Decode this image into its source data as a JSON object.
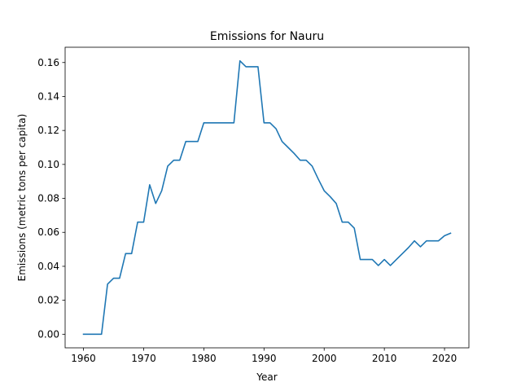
{
  "chart_data": {
    "type": "line",
    "title": "Emissions for Nauru",
    "xlabel": "Year",
    "ylabel": "Emissions (metric tons per capita)",
    "xlim": [
      1956.95,
      2024.05
    ],
    "ylim": [
      -0.008,
      0.169
    ],
    "x_ticks": [
      1960,
      1970,
      1980,
      1990,
      2000,
      2010,
      2020
    ],
    "y_ticks": [
      0.0,
      0.02,
      0.04,
      0.06,
      0.08,
      0.1,
      0.12,
      0.14,
      0.16
    ],
    "y_tick_labels": [
      "0.00",
      "0.02",
      "0.04",
      "0.06",
      "0.08",
      "0.10",
      "0.12",
      "0.14",
      "0.16"
    ],
    "grid": false,
    "series_color": "#1f77b4",
    "x": [
      1960,
      1961,
      1962,
      1963,
      1964,
      1965,
      1966,
      1967,
      1968,
      1969,
      1970,
      1971,
      1972,
      1973,
      1974,
      1975,
      1976,
      1977,
      1978,
      1979,
      1980,
      1981,
      1982,
      1983,
      1984,
      1985,
      1986,
      1987,
      1988,
      1989,
      1990,
      1991,
      1992,
      1993,
      1994,
      1995,
      1996,
      1997,
      1998,
      1999,
      2000,
      2001,
      2002,
      2003,
      2004,
      2005,
      2006,
      2007,
      2008,
      2009,
      2010,
      2011,
      2012,
      2013,
      2014,
      2015,
      2016,
      2017,
      2018,
      2019,
      2020,
      2021
    ],
    "y": [
      0.0,
      0.0,
      0.0,
      0.0,
      0.0295,
      0.033,
      0.033,
      0.0475,
      0.0475,
      0.066,
      0.066,
      0.088,
      0.077,
      0.0845,
      0.099,
      0.1025,
      0.1025,
      0.1135,
      0.1135,
      0.1135,
      0.1245,
      0.1245,
      0.1245,
      0.1245,
      0.1245,
      0.1245,
      0.161,
      0.1575,
      0.1575,
      0.1575,
      0.1245,
      0.1245,
      0.121,
      0.1135,
      0.11,
      0.1065,
      0.1025,
      0.1025,
      0.099,
      0.0915,
      0.0845,
      0.081,
      0.077,
      0.066,
      0.066,
      0.0625,
      0.044,
      0.044,
      0.044,
      0.0405,
      0.044,
      0.0405,
      0.044,
      0.0475,
      0.051,
      0.055,
      0.0515,
      0.055,
      0.055,
      0.055,
      0.058,
      0.0595
    ]
  }
}
